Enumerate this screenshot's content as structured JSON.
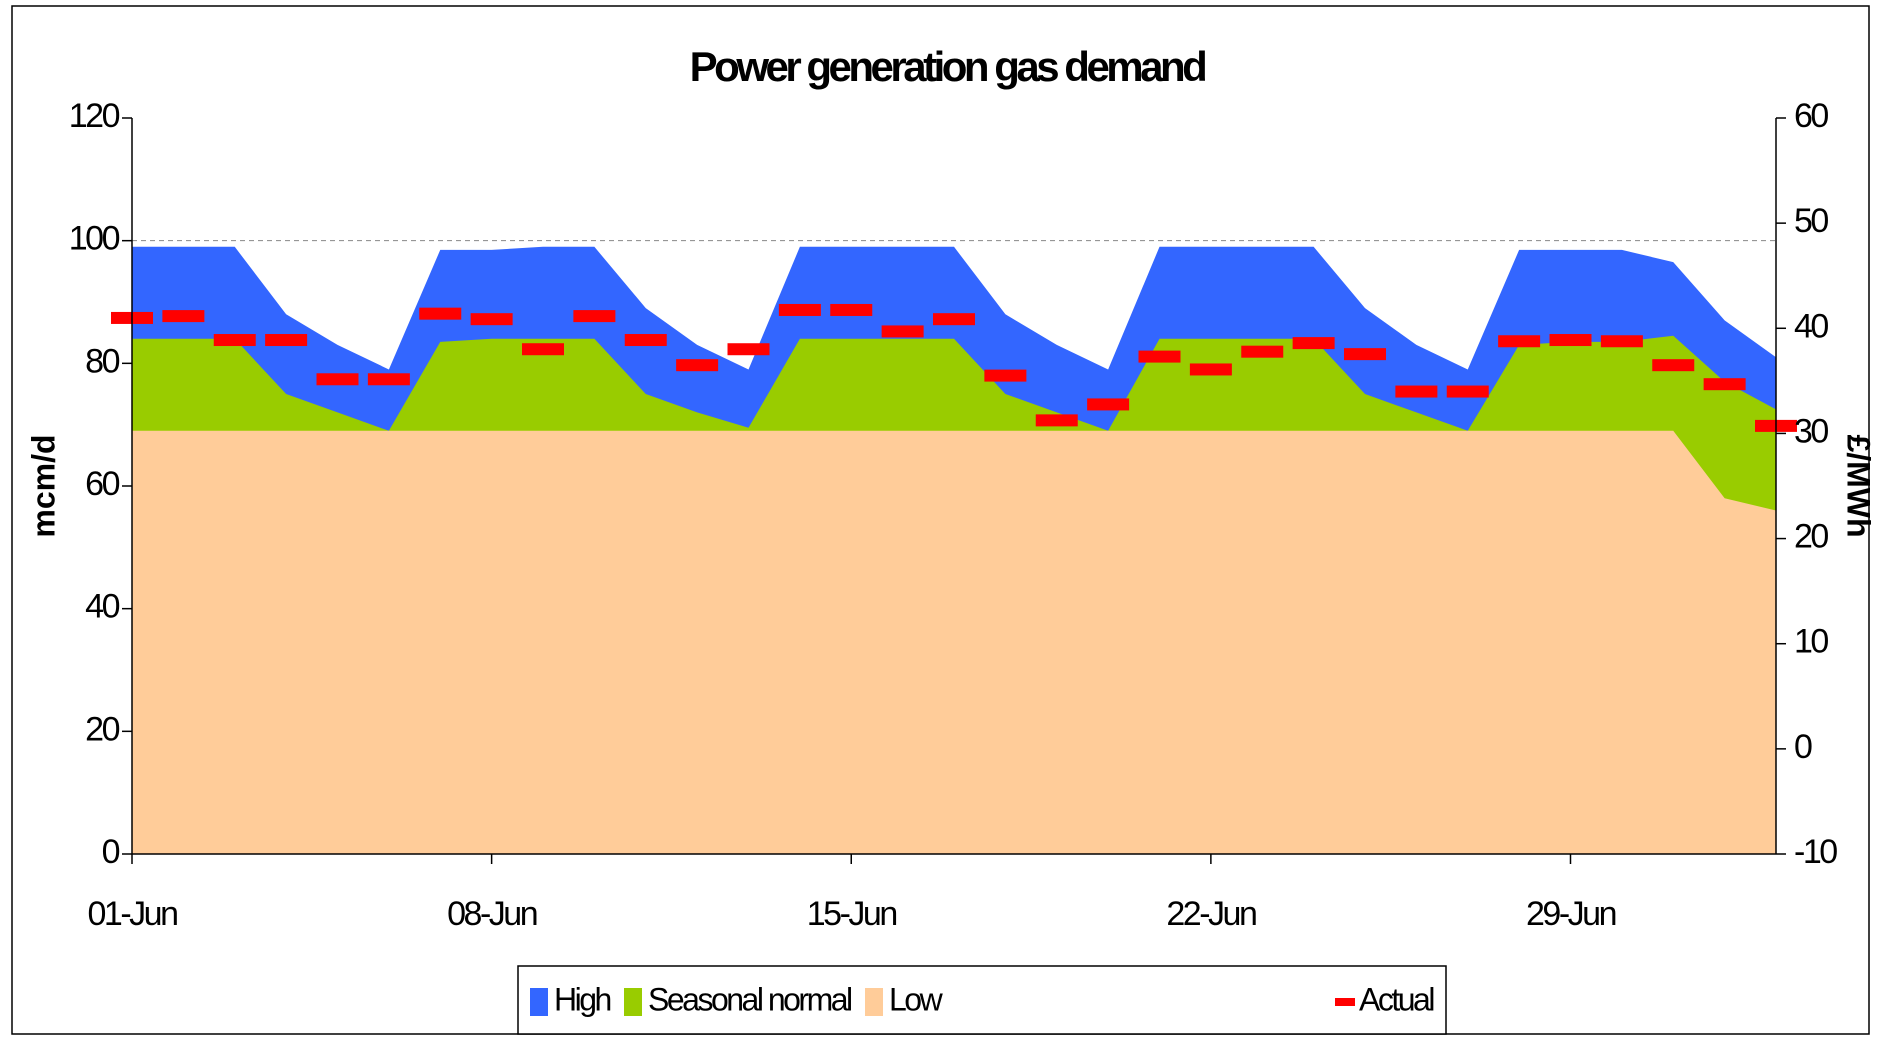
{
  "chart_data": {
    "type": "area",
    "title": "Power generation gas demand",
    "y_label": "mcm/d",
    "y2_label": "£/MWh",
    "categories": [
      "01-Jun",
      null,
      null,
      null,
      null,
      null,
      null,
      "08-Jun",
      null,
      null,
      null,
      null,
      null,
      null,
      "15-Jun",
      null,
      null,
      null,
      null,
      null,
      null,
      "22-Jun",
      null,
      null,
      null,
      null,
      null,
      null,
      "29-Jun",
      null,
      null,
      null,
      null
    ],
    "series": [
      {
        "name": "High",
        "color": "#3366ff",
        "values": [
          99,
          99,
          99,
          88,
          83,
          79,
          98.5,
          98.5,
          99,
          99,
          89,
          83,
          79,
          99,
          99,
          99,
          99,
          88,
          83,
          79,
          99,
          99,
          99,
          99,
          89,
          83,
          79,
          98.5,
          98.5,
          98.5,
          96.5,
          87,
          81
        ]
      },
      {
        "name": "Seasonal normal",
        "color": "#99cc00",
        "values": [
          84,
          84,
          84,
          75,
          72,
          69,
          83.5,
          84,
          84,
          84,
          75,
          72,
          69.5,
          84,
          84,
          84,
          84,
          75,
          72,
          69,
          84,
          84,
          84,
          84,
          75,
          72,
          69,
          83,
          83.5,
          83.5,
          84.5,
          77,
          72.5
        ]
      },
      {
        "name": "Low",
        "color": "#ffcc99",
        "values": [
          69,
          69,
          69,
          69,
          69,
          69,
          69,
          69,
          69,
          69,
          69,
          69,
          69,
          69,
          69,
          69,
          69,
          69,
          69,
          69,
          69,
          69,
          69,
          69,
          69,
          69,
          69,
          69,
          69,
          69,
          69,
          58,
          56
        ]
      },
      {
        "name": "Actual",
        "color": "#ff0000",
        "type": "marker",
        "values": [
          87.4,
          87.7,
          83.8,
          83.8,
          77.4,
          77.4,
          88.1,
          87.2,
          82.3,
          87.7,
          83.8,
          79.7,
          82.3,
          88.7,
          88.7,
          85.2,
          87.2,
          78,
          70.7,
          73.3,
          81.1,
          79,
          81.9,
          83.3,
          81.5,
          75.4,
          75.4,
          83.6,
          83.8,
          83.6,
          79.7,
          76.6,
          69.8
        ]
      }
    ],
    "ylim": [
      0,
      120
    ],
    "yticks": [
      0,
      20,
      40,
      60,
      80,
      100,
      120
    ],
    "y2lim": [
      -10,
      60
    ],
    "y2ticks": [
      -10,
      0,
      10,
      20,
      30,
      40,
      50,
      60
    ],
    "hline": 100
  }
}
